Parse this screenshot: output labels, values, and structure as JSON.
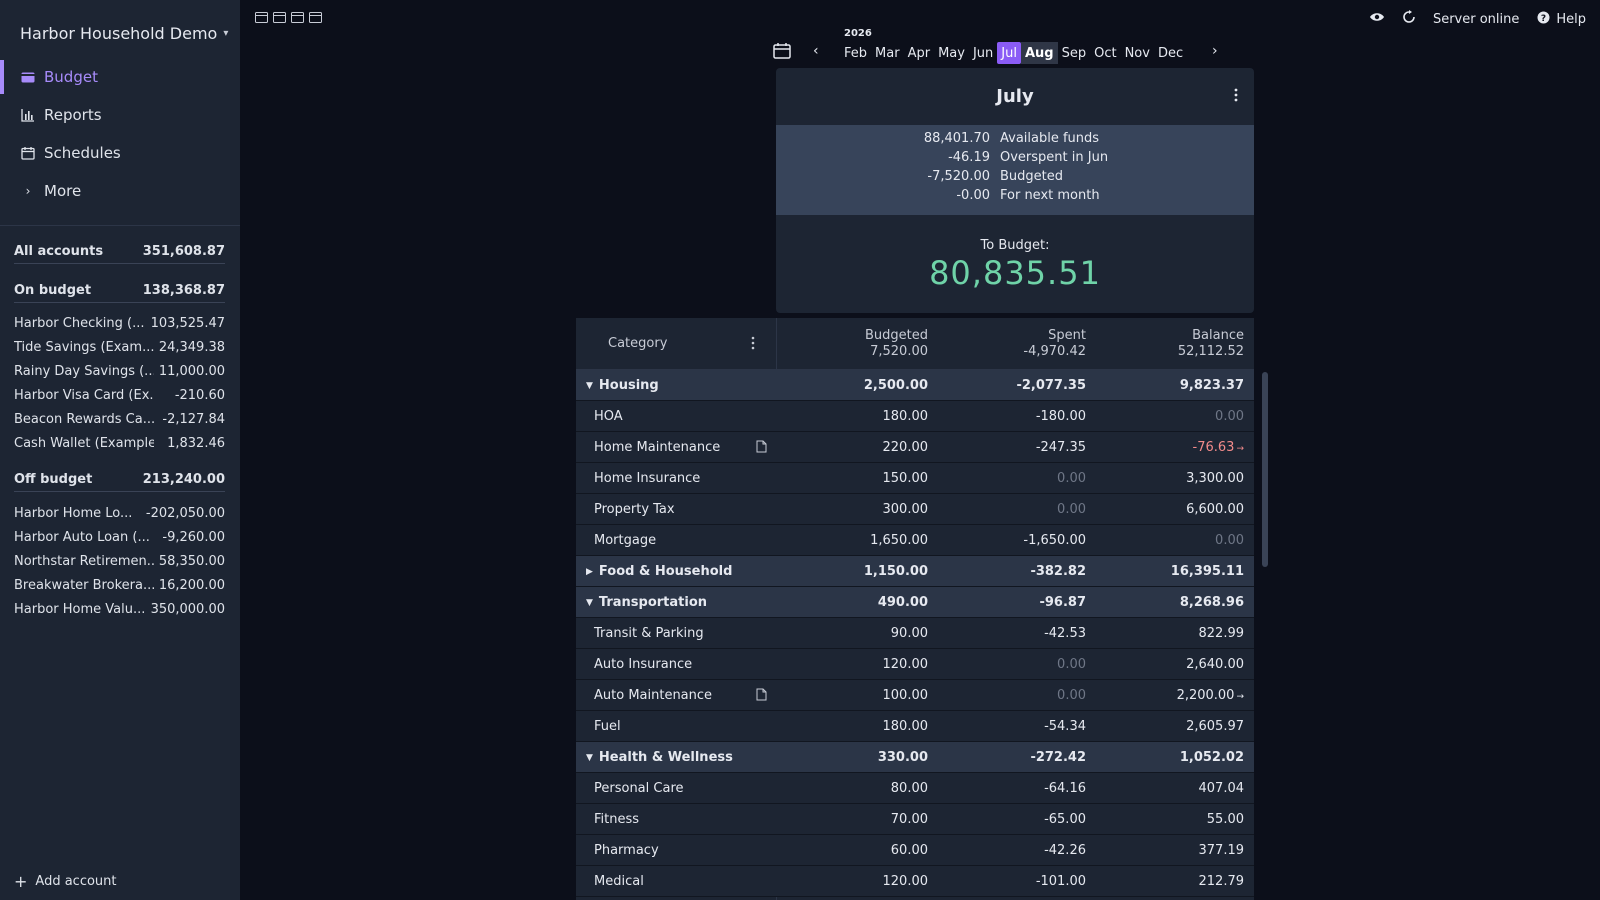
{
  "sidebar": {
    "budget_name": "Harbor Household Demo",
    "nav": [
      {
        "label": "Budget",
        "icon": "wallet-icon",
        "active": true
      },
      {
        "label": "Reports",
        "icon": "bar-chart-icon"
      },
      {
        "label": "Schedules",
        "icon": "calendar-icon"
      },
      {
        "label": "More",
        "icon": "chevron-right-icon"
      }
    ],
    "all_accounts": {
      "label": "All accounts",
      "value": "351,608.87"
    },
    "on_budget": {
      "label": "On budget",
      "value": "138,368.87"
    },
    "on_budget_accounts": [
      {
        "name": "Harbor Checking (...",
        "value": "103,525.47"
      },
      {
        "name": "Tide Savings (Exam...",
        "value": "24,349.38"
      },
      {
        "name": "Rainy Day Savings (...",
        "value": "11,000.00"
      },
      {
        "name": "Harbor Visa Card (Ex...",
        "value": "-210.60"
      },
      {
        "name": "Beacon Rewards Ca...",
        "value": "-2,127.84"
      },
      {
        "name": "Cash Wallet (Example)",
        "value": "1,832.46"
      }
    ],
    "off_budget": {
      "label": "Off budget",
      "value": "213,240.00"
    },
    "off_budget_accounts": [
      {
        "name": "Harbor Home Lo...",
        "value": "-202,050.00"
      },
      {
        "name": "Harbor Auto Loan (...",
        "value": "-9,260.00"
      },
      {
        "name": "Northstar Retiremen...",
        "value": "58,350.00"
      },
      {
        "name": "Breakwater Brokera...",
        "value": "16,200.00"
      },
      {
        "name": "Harbor Home Valu...",
        "value": "350,000.00"
      }
    ],
    "add_account": "Add account"
  },
  "topbar": {
    "server_status": "Server online",
    "help": "Help"
  },
  "month_picker": {
    "year": "2026",
    "months": [
      "Feb",
      "Mar",
      "Apr",
      "May",
      "Jun",
      "Jul",
      "Aug",
      "Sep",
      "Oct",
      "Nov",
      "Dec"
    ],
    "current": "Jul",
    "next": "Aug"
  },
  "summary": {
    "title": "July",
    "rows": [
      {
        "value": "88,401.70",
        "label": "Available funds"
      },
      {
        "value": "-46.19",
        "label": "Overspent in Jun"
      },
      {
        "value": "-7,520.00",
        "label": "Budgeted"
      },
      {
        "value": "-0.00",
        "label": "For next month"
      }
    ],
    "to_budget_label": "To Budget:",
    "to_budget_value": "80,835.51",
    "accent_color": "#6fd3a8"
  },
  "table": {
    "header": {
      "category": "Category",
      "budgeted_label": "Budgeted",
      "budgeted_total": "7,520.00",
      "spent_label": "Spent",
      "spent_total": "-4,970.42",
      "balance_label": "Balance",
      "balance_total": "52,112.52"
    },
    "rows": [
      {
        "type": "group",
        "name": "Housing",
        "expanded": true,
        "budgeted": "2,500.00",
        "spent": "-2,077.35",
        "balance": "9,823.37"
      },
      {
        "type": "cat",
        "name": "HOA",
        "budgeted": "180.00",
        "spent": "-180.00",
        "balance": "0.00"
      },
      {
        "type": "cat",
        "name": "Home Maintenance",
        "note": true,
        "budgeted": "220.00",
        "spent": "-247.35",
        "balance": "-76.63",
        "carry": true
      },
      {
        "type": "cat",
        "name": "Home Insurance",
        "budgeted": "150.00",
        "spent": "0.00",
        "balance": "3,300.00"
      },
      {
        "type": "cat",
        "name": "Property Tax",
        "budgeted": "300.00",
        "spent": "0.00",
        "balance": "6,600.00"
      },
      {
        "type": "cat",
        "name": "Mortgage",
        "budgeted": "1,650.00",
        "spent": "-1,650.00",
        "balance": "0.00"
      },
      {
        "type": "group",
        "name": "Food & Household",
        "expanded": false,
        "budgeted": "1,150.00",
        "spent": "-382.82",
        "balance": "16,395.11"
      },
      {
        "type": "group",
        "name": "Transportation",
        "expanded": true,
        "budgeted": "490.00",
        "spent": "-96.87",
        "balance": "8,268.96"
      },
      {
        "type": "cat",
        "name": "Transit & Parking",
        "budgeted": "90.00",
        "spent": "-42.53",
        "balance": "822.99"
      },
      {
        "type": "cat",
        "name": "Auto Insurance",
        "budgeted": "120.00",
        "spent": "0.00",
        "balance": "2,640.00"
      },
      {
        "type": "cat",
        "name": "Auto Maintenance",
        "note": true,
        "budgeted": "100.00",
        "spent": "0.00",
        "balance": "2,200.00",
        "carry": true
      },
      {
        "type": "cat",
        "name": "Fuel",
        "budgeted": "180.00",
        "spent": "-54.34",
        "balance": "2,605.97"
      },
      {
        "type": "group",
        "name": "Health & Wellness",
        "expanded": true,
        "budgeted": "330.00",
        "spent": "-272.42",
        "balance": "1,052.02"
      },
      {
        "type": "cat",
        "name": "Personal Care",
        "budgeted": "80.00",
        "spent": "-64.16",
        "balance": "407.04"
      },
      {
        "type": "cat",
        "name": "Fitness",
        "budgeted": "70.00",
        "spent": "-65.00",
        "balance": "55.00"
      },
      {
        "type": "cat",
        "name": "Pharmacy",
        "budgeted": "60.00",
        "spent": "-42.26",
        "balance": "377.19"
      },
      {
        "type": "cat",
        "name": "Medical",
        "budgeted": "120.00",
        "spent": "-101.00",
        "balance": "212.79"
      }
    ]
  }
}
